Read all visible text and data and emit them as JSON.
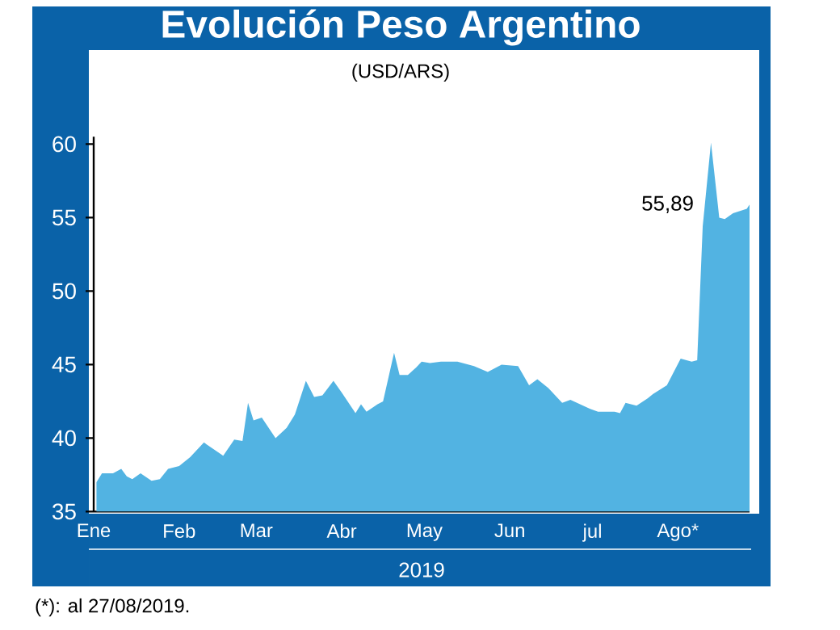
{
  "chart_data": {
    "type": "area",
    "title": "Evolución Peso Argentino",
    "subtitle": "(USD/ARS)",
    "xlabel": "2019",
    "x": [
      "2019-01-02",
      "2019-01-04",
      "2019-01-08",
      "2019-01-11",
      "2019-01-13",
      "2019-01-15",
      "2019-01-18",
      "2019-01-22",
      "2019-01-25",
      "2019-01-28",
      "2019-02-01",
      "2019-02-05",
      "2019-02-10",
      "2019-02-17",
      "2019-02-21",
      "2019-02-24",
      "2019-02-26",
      "2019-02-28",
      "2019-03-03",
      "2019-03-08",
      "2019-03-12",
      "2019-03-15",
      "2019-03-19",
      "2019-03-22",
      "2019-03-25",
      "2019-03-29",
      "2019-04-01",
      "2019-04-06",
      "2019-04-08",
      "2019-04-10",
      "2019-04-14",
      "2019-04-16",
      "2019-04-20",
      "2019-04-22",
      "2019-04-25",
      "2019-04-28",
      "2019-04-30",
      "2019-05-03",
      "2019-05-07",
      "2019-05-13",
      "2019-05-19",
      "2019-05-24",
      "2019-05-29",
      "2019-06-04",
      "2019-06-08",
      "2019-06-11",
      "2019-06-15",
      "2019-06-20",
      "2019-06-23",
      "2019-06-30",
      "2019-07-03",
      "2019-07-09",
      "2019-07-11",
      "2019-07-13",
      "2019-07-17",
      "2019-07-21",
      "2019-07-23",
      "2019-07-28",
      "2019-08-02",
      "2019-08-06",
      "2019-08-08",
      "2019-08-10",
      "2019-08-13",
      "2019-08-16",
      "2019-08-18",
      "2019-08-21",
      "2019-08-26",
      "2019-08-27"
    ],
    "series": [
      {
        "color": "#52b3e2",
        "values": [
          37.0,
          37.6,
          37.6,
          37.9,
          37.4,
          37.2,
          37.6,
          37.1,
          37.2,
          37.9,
          38.1,
          38.7,
          39.7,
          38.8,
          39.9,
          39.8,
          42.4,
          41.2,
          41.4,
          40.0,
          40.7,
          41.6,
          43.9,
          42.8,
          42.9,
          43.9,
          43.1,
          41.7,
          42.3,
          41.8,
          42.3,
          42.5,
          45.8,
          44.3,
          44.3,
          44.8,
          45.2,
          45.1,
          45.2,
          45.2,
          44.9,
          44.5,
          45.0,
          44.9,
          43.6,
          44.0,
          43.4,
          42.4,
          42.6,
          42.0,
          41.8,
          41.8,
          41.7,
          42.4,
          42.2,
          42.7,
          43.0,
          43.6,
          45.4,
          45.2,
          45.3,
          54.4,
          60.1,
          55.0,
          54.9,
          55.3,
          55.6,
          55.89
        ]
      }
    ],
    "xlim": [
      "2019-01-01",
      "2019-08-27"
    ],
    "xticks": [
      {
        "value": "2019-01-01",
        "label": "Ene"
      },
      {
        "value": "2019-02-01",
        "label": "Feb"
      },
      {
        "value": "2019-03-01",
        "label": "Mar"
      },
      {
        "value": "2019-04-01",
        "label": "Abr"
      },
      {
        "value": "2019-05-01",
        "label": "May"
      },
      {
        "value": "2019-06-01",
        "label": "Jun"
      },
      {
        "value": "2019-07-01",
        "label": "jul"
      },
      {
        "value": "2019-08-01",
        "label": "Ago*"
      }
    ],
    "ylim": [
      35,
      60.5
    ],
    "yticks": [
      35,
      40,
      45,
      50,
      55,
      60
    ],
    "grid": false,
    "annotations": [
      {
        "text": "55,89",
        "x": "2019-08-27",
        "y": 55.89
      },
      "(*): al 27/08/2019."
    ]
  }
}
